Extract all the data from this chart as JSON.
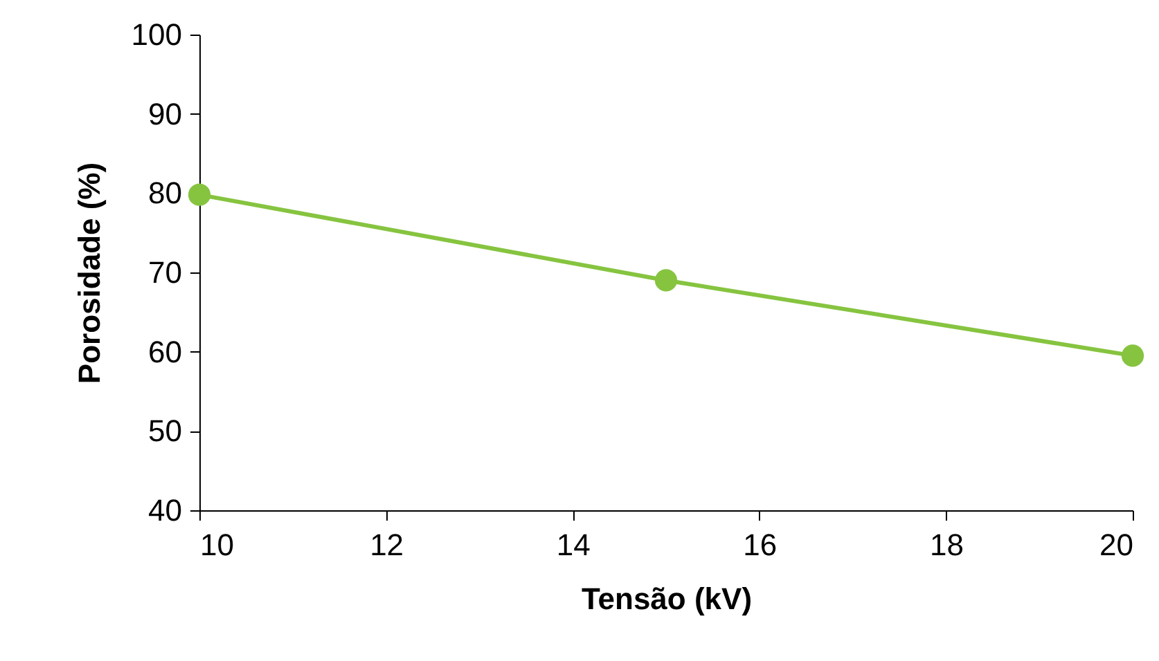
{
  "chart_data": {
    "type": "line",
    "xlabel": "Tensão (kV)",
    "ylabel": "Porosidade (%)",
    "x": [
      10,
      15,
      20
    ],
    "series": [
      {
        "color": "#86c440",
        "values": [
          79.8,
          69,
          59.5
        ]
      }
    ],
    "xlim": [
      10,
      20
    ],
    "xticks": [
      10,
      12,
      14,
      16,
      18,
      20
    ],
    "ylim": [
      40,
      100
    ],
    "yticks": [
      40,
      50,
      60,
      70,
      80,
      90,
      100
    ],
    "grid": false,
    "marker": "circle",
    "line_style": "solid"
  }
}
